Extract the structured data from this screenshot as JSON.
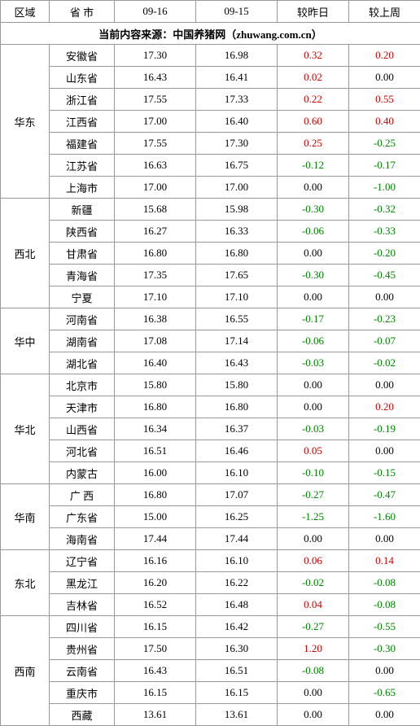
{
  "headers": {
    "region": "区域",
    "province": "省 市",
    "d1": "09-16",
    "d2": "09-15",
    "vs_yesterday": "较昨日",
    "vs_lastweek": "较上周"
  },
  "source_line": "当前内容来源：中国养猪网（zhuwang.com.cn）",
  "colors": {
    "positive": "#d40000",
    "negative": "#008000",
    "neutral": "#000000",
    "border": "#999999"
  },
  "regions": [
    {
      "name": "华东",
      "rows": [
        {
          "prov": "安徽省",
          "d1": "17.30",
          "d2": "16.98",
          "dy": "0.32",
          "dw": "0.20"
        },
        {
          "prov": "山东省",
          "d1": "16.43",
          "d2": "16.41",
          "dy": "0.02",
          "dw": "0.00"
        },
        {
          "prov": "浙江省",
          "d1": "17.55",
          "d2": "17.33",
          "dy": "0.22",
          "dw": "0.55"
        },
        {
          "prov": "江西省",
          "d1": "17.00",
          "d2": "16.40",
          "dy": "0.60",
          "dw": "0.40"
        },
        {
          "prov": "福建省",
          "d1": "17.55",
          "d2": "17.30",
          "dy": "0.25",
          "dw": "-0.25"
        },
        {
          "prov": "江苏省",
          "d1": "16.63",
          "d2": "16.75",
          "dy": "-0.12",
          "dw": "-0.17"
        },
        {
          "prov": "上海市",
          "d1": "17.00",
          "d2": "17.00",
          "dy": "0.00",
          "dw": "-1.00"
        }
      ]
    },
    {
      "name": "西北",
      "rows": [
        {
          "prov": "新疆",
          "d1": "15.68",
          "d2": "15.98",
          "dy": "-0.30",
          "dw": "-0.32"
        },
        {
          "prov": "陕西省",
          "d1": "16.27",
          "d2": "16.33",
          "dy": "-0.06",
          "dw": "-0.33"
        },
        {
          "prov": "甘肃省",
          "d1": "16.80",
          "d2": "16.80",
          "dy": "0.00",
          "dw": "-0.20"
        },
        {
          "prov": "青海省",
          "d1": "17.35",
          "d2": "17.65",
          "dy": "-0.30",
          "dw": "-0.45"
        },
        {
          "prov": "宁夏",
          "d1": "17.10",
          "d2": "17.10",
          "dy": "0.00",
          "dw": "0.00"
        }
      ]
    },
    {
      "name": "华中",
      "rows": [
        {
          "prov": "河南省",
          "d1": "16.38",
          "d2": "16.55",
          "dy": "-0.17",
          "dw": "-0.23"
        },
        {
          "prov": "湖南省",
          "d1": "17.08",
          "d2": "17.14",
          "dy": "-0.06",
          "dw": "-0.07"
        },
        {
          "prov": "湖北省",
          "d1": "16.40",
          "d2": "16.43",
          "dy": "-0.03",
          "dw": "-0.02"
        }
      ]
    },
    {
      "name": "华北",
      "rows": [
        {
          "prov": "北京市",
          "d1": "15.80",
          "d2": "15.80",
          "dy": "0.00",
          "dw": "0.00"
        },
        {
          "prov": "天津市",
          "d1": "16.80",
          "d2": "16.80",
          "dy": "0.00",
          "dw": "0.20"
        },
        {
          "prov": "山西省",
          "d1": "16.34",
          "d2": "16.37",
          "dy": "-0.03",
          "dw": "-0.19"
        },
        {
          "prov": "河北省",
          "d1": "16.51",
          "d2": "16.46",
          "dy": "0.05",
          "dw": "0.00"
        },
        {
          "prov": "内蒙古",
          "d1": "16.00",
          "d2": "16.10",
          "dy": "-0.10",
          "dw": "-0.15"
        }
      ]
    },
    {
      "name": "华南",
      "rows": [
        {
          "prov": "广 西",
          "d1": "16.80",
          "d2": "17.07",
          "dy": "-0.27",
          "dw": "-0.47"
        },
        {
          "prov": "广东省",
          "d1": "15.00",
          "d2": "16.25",
          "dy": "-1.25",
          "dw": "-1.60"
        },
        {
          "prov": "海南省",
          "d1": "17.44",
          "d2": "17.44",
          "dy": "0.00",
          "dw": "0.00"
        }
      ]
    },
    {
      "name": "东北",
      "rows": [
        {
          "prov": "辽宁省",
          "d1": "16.16",
          "d2": "16.10",
          "dy": "0.06",
          "dw": "0.14"
        },
        {
          "prov": "黑龙江",
          "d1": "16.20",
          "d2": "16.22",
          "dy": "-0.02",
          "dw": "-0.08"
        },
        {
          "prov": "吉林省",
          "d1": "16.52",
          "d2": "16.48",
          "dy": "0.04",
          "dw": "-0.08"
        }
      ]
    },
    {
      "name": "西南",
      "rows": [
        {
          "prov": "四川省",
          "d1": "16.15",
          "d2": "16.42",
          "dy": "-0.27",
          "dw": "-0.55"
        },
        {
          "prov": "贵州省",
          "d1": "17.50",
          "d2": "16.30",
          "dy": "1.20",
          "dw": "-0.30"
        },
        {
          "prov": "云南省",
          "d1": "16.43",
          "d2": "16.51",
          "dy": "-0.08",
          "dw": "0.00"
        },
        {
          "prov": "重庆市",
          "d1": "16.15",
          "d2": "16.15",
          "dy": "0.00",
          "dw": "-0.65"
        },
        {
          "prov": "西藏",
          "d1": "13.61",
          "d2": "13.61",
          "dy": "0.00",
          "dw": "0.00"
        }
      ]
    }
  ]
}
